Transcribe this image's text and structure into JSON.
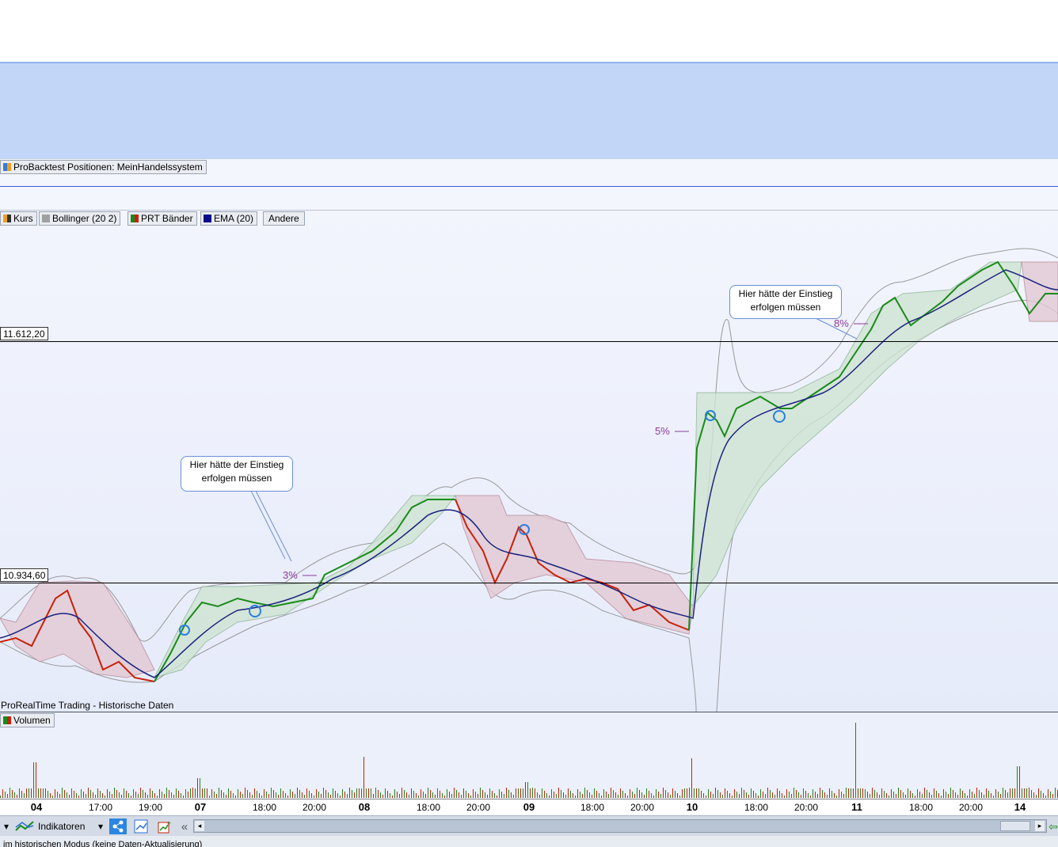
{
  "positions_legend": {
    "label": "ProBacktest Positionen: MeinHandelssystem"
  },
  "price_legend": {
    "items": [
      {
        "label": "Kurs",
        "icon": "price-swatch-icon"
      },
      {
        "label": "Bollinger (20 2)",
        "icon": "bollinger-swatch-icon"
      },
      {
        "label": "PRT Bänder",
        "icon": "prt-bands-swatch-icon"
      },
      {
        "label": "EMA (20)",
        "icon": "ema-swatch-icon"
      },
      {
        "label": "Andere",
        "icon": ""
      }
    ]
  },
  "price_levels": {
    "upper": "11.612,20",
    "lower": "10.934,60"
  },
  "annotations": {
    "callout_1": {
      "line1": "Hier hätte der Einstieg",
      "line2": "erfolgen müssen"
    },
    "callout_2": {
      "line1": "Hier hätte der Einstieg",
      "line2": "erfolgen müssen"
    },
    "pct_3": "3%",
    "pct_5": "5%",
    "pct_8": "8%"
  },
  "source_label": "ProRealTime Trading - Historische Daten",
  "volume_legend": {
    "label": "Volumen"
  },
  "time_axis": {
    "labels": [
      {
        "text": "04",
        "major": true
      },
      {
        "text": "17:00",
        "major": false
      },
      {
        "text": "19:00",
        "major": false
      },
      {
        "text": "07",
        "major": true
      },
      {
        "text": "18:00",
        "major": false
      },
      {
        "text": "20:00",
        "major": false
      },
      {
        "text": "08",
        "major": true
      },
      {
        "text": "18:00",
        "major": false
      },
      {
        "text": "20:00",
        "major": false
      },
      {
        "text": "09",
        "major": true
      },
      {
        "text": "18:00",
        "major": false
      },
      {
        "text": "20:00",
        "major": false
      },
      {
        "text": "10",
        "major": true
      },
      {
        "text": "18:00",
        "major": false
      },
      {
        "text": "20:00",
        "major": false
      },
      {
        "text": "11",
        "major": true
      },
      {
        "text": "18:00",
        "major": false
      },
      {
        "text": "20:00",
        "major": false
      },
      {
        "text": "14",
        "major": true
      }
    ]
  },
  "toolbar": {
    "indicators_label": "Indikatoren",
    "collapse_glyph": "«"
  },
  "status_bar": {
    "text": "im historischen Modus (keine Daten-Aktualisierung)"
  },
  "colors": {
    "up_candle": "#1a8a1a",
    "down_candle": "#c8200a",
    "ema": "#1a237e",
    "bollinger": "#9a9a9a",
    "band_up_fill": "#cfe4d2",
    "band_down_fill": "#e3c9d3",
    "pct_text": "#8d3a99",
    "equity_bg": "#c2d6f8"
  }
}
